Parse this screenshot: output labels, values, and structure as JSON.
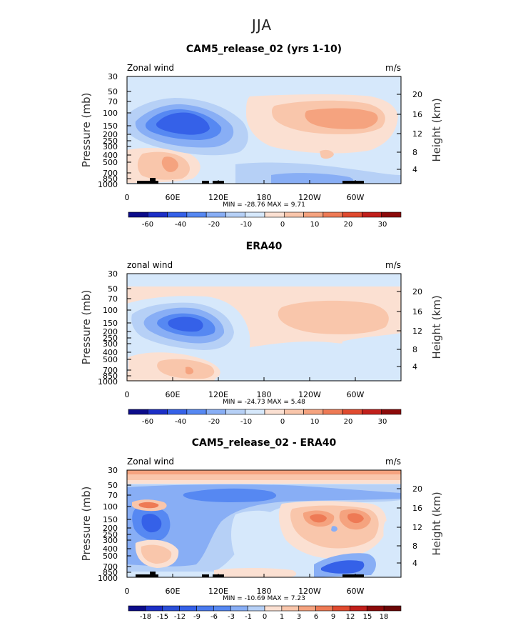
{
  "title": "JJA",
  "chart_data": [
    {
      "type": "heatmap",
      "title": "CAM5_release_02 (yrs 1-10)",
      "left_label": "Zonal wind",
      "right_label": "m/s",
      "ylabel": "Pressure (mb)",
      "ylabel_right": "Height (km)",
      "y_ticks": [
        "30",
        "50",
        "70",
        "100",
        "150",
        "200",
        "250",
        "300",
        "400",
        "500",
        "700",
        "850",
        "1000"
      ],
      "y_right_ticks": [
        "20",
        "16",
        "12",
        "8",
        "4"
      ],
      "x_ticks": [
        "0",
        "60E",
        "120E",
        "180",
        "120W",
        "60W"
      ],
      "minmax_text": "MIN = -28.76   MAX =    9.71",
      "colorbar_labels": [
        "-60",
        "-40",
        "-20",
        "-10",
        "0",
        "10",
        "20",
        "30"
      ],
      "colorbar_colors": [
        "#0c0c8a",
        "#1c2fc6",
        "#3561e8",
        "#5688f2",
        "#88aef5",
        "#b6d0f6",
        "#d6e8fb",
        "#fbe0d2",
        "#f9c6ab",
        "#f5a37f",
        "#ee7a55",
        "#e04a2f",
        "#c11f1b",
        "#8c0a0a"
      ],
      "features": [
        {
          "name": "tropical-easterlies",
          "x": [
            0,
            360
          ],
          "y": [
            1000,
            30
          ],
          "value": -5
        },
        {
          "name": "asian-easterly-jet",
          "x": [
            35,
            115
          ],
          "y": [
            250,
            80
          ],
          "value": -20
        },
        {
          "name": "asian-jet-core",
          "x": [
            45,
            90
          ],
          "y": [
            200,
            100
          ],
          "value": -28.76
        },
        {
          "name": "southern-westerly-jet",
          "x": [
            200,
            340
          ],
          "y": [
            250,
            70
          ],
          "value": 8
        },
        {
          "name": "low-level-westerly",
          "x": [
            15,
            95
          ],
          "y": [
            1000,
            350
          ],
          "value": 6
        }
      ]
    },
    {
      "type": "heatmap",
      "title": "ERA40",
      "left_label": "zonal wind",
      "right_label": "m/s",
      "ylabel": "Pressure (mb)",
      "ylabel_right": "Height (km)",
      "y_ticks": [
        "30",
        "50",
        "70",
        "100",
        "150",
        "200",
        "250",
        "300",
        "400",
        "500",
        "700",
        "850",
        "1000"
      ],
      "y_right_ticks": [
        "20",
        "16",
        "12",
        "8",
        "4"
      ],
      "x_ticks": [
        "0",
        "60E",
        "120E",
        "180",
        "120W",
        "60W"
      ],
      "minmax_text": "MIN = -24.73   MAX =    5.48",
      "colorbar_labels": [
        "-60",
        "-40",
        "-20",
        "-10",
        "0",
        "10",
        "20",
        "30"
      ],
      "colorbar_colors": [
        "#0c0c8a",
        "#1c2fc6",
        "#3561e8",
        "#5688f2",
        "#88aef5",
        "#b6d0f6",
        "#d6e8fb",
        "#fbe0d2",
        "#f9c6ab",
        "#f5a37f",
        "#ee7a55",
        "#e04a2f",
        "#c11f1b",
        "#8c0a0a"
      ],
      "features": [
        {
          "name": "stratospheric-easterlies",
          "x": [
            0,
            360
          ],
          "y": [
            50,
            30
          ],
          "value": -5
        },
        {
          "name": "asian-easterly-jet",
          "x": [
            35,
            120
          ],
          "y": [
            300,
            90
          ],
          "value": -15
        },
        {
          "name": "asian-jet-core",
          "x": [
            50,
            90
          ],
          "y": [
            200,
            120
          ],
          "value": -24.73
        },
        {
          "name": "southern-westerly-jet",
          "x": [
            200,
            330
          ],
          "y": [
            200,
            80
          ],
          "value": 5.48
        }
      ]
    },
    {
      "type": "heatmap",
      "title": "CAM5_release_02 - ERA40",
      "left_label": "Zonal wind",
      "right_label": "m/s",
      "ylabel": "Pressure (mb)",
      "ylabel_right": "Height (km)",
      "y_ticks": [
        "30",
        "50",
        "70",
        "100",
        "150",
        "200",
        "250",
        "300",
        "400",
        "500",
        "700",
        "850",
        "1000"
      ],
      "y_right_ticks": [
        "20",
        "16",
        "12",
        "8",
        "4"
      ],
      "x_ticks": [
        "0",
        "60E",
        "120E",
        "180",
        "120W",
        "60W"
      ],
      "minmax_text": "MIN = -10.69   MAX =    7.23",
      "colorbar_labels": [
        "-18",
        "-15",
        "-12",
        "-9",
        "-6",
        "-3",
        "-1",
        "0",
        "1",
        "3",
        "6",
        "9",
        "12",
        "15",
        "18"
      ],
      "colorbar_colors": [
        "#0c0c8a",
        "#1c2fc6",
        "#2b4fd8",
        "#3561e8",
        "#4a7aef",
        "#5688f2",
        "#88aef5",
        "#b6d0f6",
        "#fbe0d2",
        "#f9c6ab",
        "#f5a37f",
        "#ee7a55",
        "#e04a2f",
        "#c11f1b",
        "#8c0a0a",
        "#6b0606"
      ],
      "features": [
        {
          "name": "stratospheric-positive-band",
          "x": [
            0,
            360
          ],
          "y": [
            40,
            30
          ],
          "value": 4
        },
        {
          "name": "broad-negative-band",
          "x": [
            0,
            360
          ],
          "y": [
            150,
            50
          ],
          "value": -4
        },
        {
          "name": "asian-negative-core",
          "x": [
            15,
            50
          ],
          "y": [
            300,
            150
          ],
          "value": -10.69
        },
        {
          "name": "southern-positive-jet",
          "x": [
            225,
            340
          ],
          "y": [
            250,
            90
          ],
          "value": 7.23
        },
        {
          "name": "surface-negative",
          "x": [
            270,
            335
          ],
          "y": [
            1000,
            700
          ],
          "value": -6
        }
      ]
    }
  ]
}
